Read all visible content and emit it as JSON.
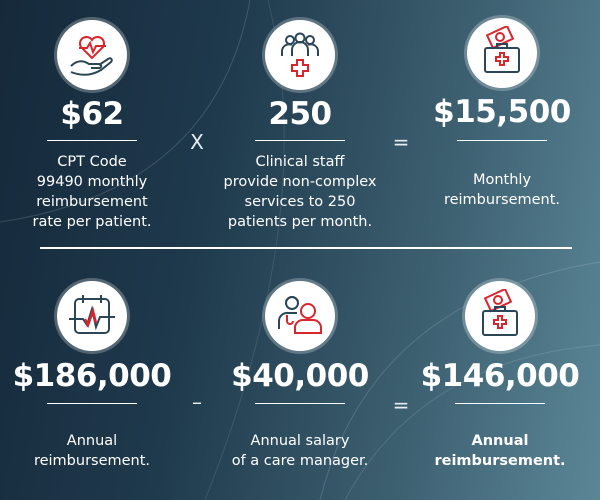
{
  "colors": {
    "accent_red": "#d9262e",
    "icon_stroke": "#2b4657",
    "background_dark": "#15293a",
    "background_light": "#5b8696"
  },
  "top_row": [
    {
      "icon": "heart-in-hand-icon",
      "value": "$62",
      "description": "CPT Code\n99490 monthly\nreimbursement\nrate per patient."
    },
    {
      "icon": "staff-group-icon",
      "value": "250",
      "description": "Clinical staff\nprovide non-complex\nservices to 250\npatients per month."
    },
    {
      "icon": "money-medical-kit-icon",
      "value": "$15,500",
      "description": "Monthly\nreimbursement."
    }
  ],
  "top_operators": [
    "X",
    "="
  ],
  "bottom_row": [
    {
      "icon": "calendar-heartbeat-icon",
      "value": "$186,000",
      "description": "Annual\nreimbursement."
    },
    {
      "icon": "care-manager-icon",
      "value": "$40,000",
      "description": "Annual salary\nof a care manager."
    },
    {
      "icon": "money-medical-kit-icon",
      "value": "$146,000",
      "description": "Annual\nreimbursement."
    }
  ],
  "bottom_operators": [
    "–",
    "="
  ]
}
